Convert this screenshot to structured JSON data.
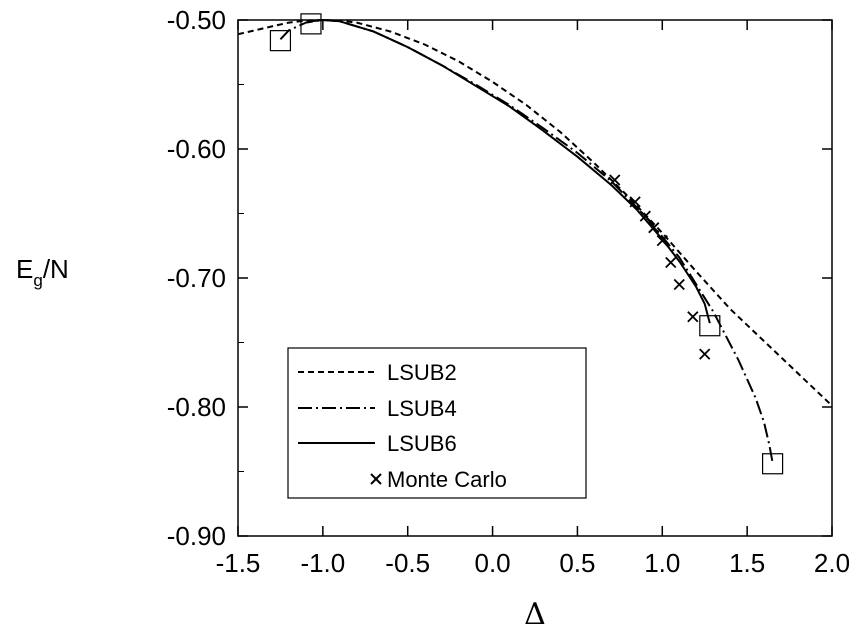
{
  "chart_data": {
    "type": "line",
    "xlabel": "Δ",
    "ylabel": {
      "main": "E",
      "sub": "g",
      "tail": "/N"
    },
    "xlim": [
      -1.5,
      2.0
    ],
    "ylim": [
      -0.9,
      -0.5
    ],
    "xticks": [
      "-1.5",
      "-1.0",
      "-0.5",
      "0.0",
      "0.5",
      "1.0",
      "1.5",
      "2.0"
    ],
    "yticks": [
      "-0.50",
      "-0.60",
      "-0.70",
      "-0.80",
      "-0.90"
    ],
    "grid": false,
    "legend_position": "bottom-left",
    "series": [
      {
        "name": "LSUB2",
        "style": "dashed",
        "x": [
          -1.5,
          -1.4,
          -1.3,
          -1.2,
          -1.1,
          -1.0,
          -0.9,
          -0.8,
          -0.6,
          -0.4,
          -0.2,
          0.0,
          0.2,
          0.4,
          0.6,
          0.8,
          1.0,
          1.2,
          1.4,
          1.6,
          1.8,
          2.0
        ],
        "y": [
          -0.511,
          -0.508,
          -0.505,
          -0.502,
          -0.5005,
          -0.5,
          -0.5005,
          -0.502,
          -0.509,
          -0.519,
          -0.532,
          -0.548,
          -0.566,
          -0.587,
          -0.611,
          -0.637,
          -0.665,
          -0.695,
          -0.724,
          -0.749,
          -0.774,
          -0.799
        ]
      },
      {
        "name": "LSUB4",
        "style": "dash-dot",
        "x": [
          -1.25,
          -1.2,
          -1.1,
          -1.0,
          -0.9,
          -0.7,
          -0.5,
          -0.3,
          -0.1,
          0.1,
          0.3,
          0.5,
          0.7,
          0.9,
          1.1,
          1.3,
          1.45,
          1.55,
          1.6,
          1.63,
          1.65
        ],
        "y": [
          -0.515,
          -0.508,
          -0.502,
          -0.5,
          -0.501,
          -0.509,
          -0.521,
          -0.535,
          -0.55,
          -0.566,
          -0.584,
          -0.603,
          -0.625,
          -0.652,
          -0.684,
          -0.726,
          -0.764,
          -0.793,
          -0.812,
          -0.829,
          -0.843
        ]
      },
      {
        "name": "LSUB6",
        "style": "solid",
        "x": [
          -1.07,
          -1.0,
          -0.9,
          -0.7,
          -0.5,
          -0.3,
          -0.1,
          0.1,
          0.3,
          0.5,
          0.7,
          0.85,
          1.0,
          1.1,
          1.2,
          1.25,
          1.28
        ],
        "y": [
          -0.501,
          -0.5,
          -0.501,
          -0.509,
          -0.521,
          -0.535,
          -0.551,
          -0.567,
          -0.586,
          -0.606,
          -0.628,
          -0.647,
          -0.67,
          -0.687,
          -0.707,
          -0.72,
          -0.735
        ]
      },
      {
        "name": "Monte Carlo",
        "style": "cross",
        "x": [
          0.72,
          0.84,
          0.9,
          0.95,
          1.0,
          1.05,
          1.1,
          1.18,
          1.25
        ],
        "y": [
          -0.624,
          -0.641,
          -0.652,
          -0.661,
          -0.671,
          -0.688,
          -0.705,
          -0.73,
          -0.759
        ]
      }
    ],
    "endpoint_markers": {
      "x": [
        -1.25,
        -1.07,
        1.28,
        1.65
      ],
      "y": [
        -0.516,
        -0.503,
        -0.737,
        -0.844
      ]
    }
  }
}
